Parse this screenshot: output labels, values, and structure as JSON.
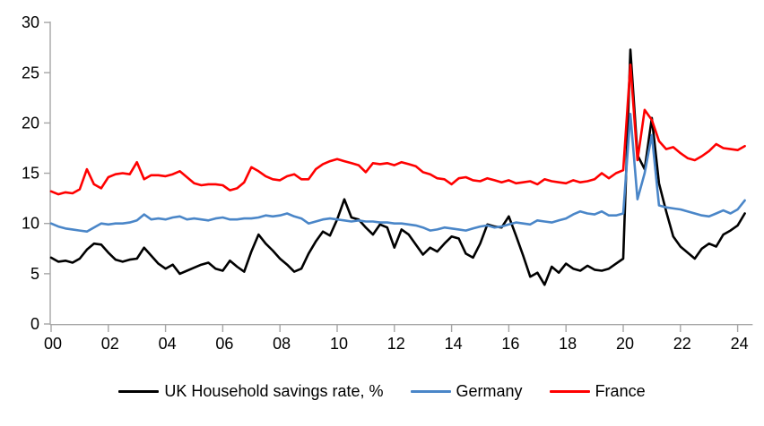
{
  "chart_data": {
    "type": "line",
    "title": "",
    "xlabel": "",
    "ylabel": "",
    "x_start": 2000,
    "x_step": 0.25,
    "xlim": [
      2000,
      2024.4
    ],
    "ylim": [
      0,
      30
    ],
    "grid": false,
    "legend_position": "bottom",
    "axis_color": "#a6a6a6",
    "tick_label_color": "#000000",
    "yticks": [
      0,
      5,
      10,
      15,
      20,
      25,
      30
    ],
    "ytick_labels": [
      "0",
      "5",
      "10",
      "15",
      "20",
      "25",
      "30"
    ],
    "xticks": [
      2000,
      2002,
      2004,
      2006,
      2008,
      2010,
      2012,
      2014,
      2016,
      2018,
      2020,
      2022,
      2024
    ],
    "xtick_labels": [
      "00",
      "02",
      "04",
      "06",
      "08",
      "10",
      "12",
      "14",
      "16",
      "18",
      "20",
      "22",
      "24"
    ],
    "series": [
      {
        "name": "UK Household savings rate, %",
        "color": "#000000",
        "values": [
          6.6,
          6.2,
          6.3,
          6.1,
          6.5,
          7.4,
          8.0,
          7.9,
          7.1,
          6.4,
          6.2,
          6.4,
          6.5,
          7.6,
          6.8,
          6.0,
          5.5,
          5.9,
          5.0,
          5.3,
          5.6,
          5.9,
          6.1,
          5.5,
          5.3,
          6.3,
          5.7,
          5.2,
          7.2,
          8.9,
          8.0,
          7.3,
          6.5,
          5.9,
          5.2,
          5.5,
          7.0,
          8.2,
          9.2,
          8.8,
          10.4,
          12.4,
          10.6,
          10.4,
          9.6,
          8.9,
          9.9,
          9.6,
          7.6,
          9.4,
          8.9,
          7.9,
          6.9,
          7.6,
          7.2,
          8.0,
          8.7,
          8.5,
          7.0,
          6.6,
          8.0,
          9.9,
          9.7,
          9.6,
          10.7,
          8.8,
          6.8,
          4.7,
          5.1,
          3.9,
          5.7,
          5.1,
          6.0,
          5.5,
          5.3,
          5.8,
          5.4,
          5.3,
          5.5,
          6.0,
          6.5,
          27.3,
          16.8,
          15.4,
          20.5,
          14.0,
          11.2,
          8.7,
          7.7,
          7.1,
          6.5,
          7.5,
          8.0,
          7.7,
          8.9,
          9.3,
          9.8,
          11.0
        ]
      },
      {
        "name": "Germany",
        "color": "#4a86c8",
        "values": [
          10.0,
          9.7,
          9.5,
          9.4,
          9.3,
          9.2,
          9.6,
          10.0,
          9.9,
          10.0,
          10.0,
          10.1,
          10.3,
          10.9,
          10.4,
          10.5,
          10.4,
          10.6,
          10.7,
          10.4,
          10.5,
          10.4,
          10.3,
          10.5,
          10.6,
          10.4,
          10.4,
          10.5,
          10.5,
          10.6,
          10.8,
          10.7,
          10.8,
          11.0,
          10.7,
          10.5,
          10.0,
          10.2,
          10.4,
          10.5,
          10.4,
          10.3,
          10.2,
          10.3,
          10.2,
          10.2,
          10.1,
          10.1,
          10.0,
          10.0,
          9.9,
          9.8,
          9.6,
          9.3,
          9.4,
          9.6,
          9.5,
          9.4,
          9.3,
          9.5,
          9.7,
          9.8,
          9.6,
          9.7,
          9.9,
          10.1,
          10.0,
          9.9,
          10.3,
          10.2,
          10.1,
          10.3,
          10.5,
          10.9,
          11.2,
          11.0,
          10.9,
          11.2,
          10.8,
          10.8,
          11.0,
          20.9,
          12.4,
          15.0,
          18.8,
          11.8,
          11.6,
          11.5,
          11.4,
          11.2,
          11.0,
          10.8,
          10.7,
          11.0,
          11.3,
          11.0,
          11.4,
          12.3
        ]
      },
      {
        "name": "France",
        "color": "#ff0000",
        "values": [
          13.2,
          12.9,
          13.1,
          13.0,
          13.4,
          15.4,
          13.9,
          13.5,
          14.6,
          14.9,
          15.0,
          14.9,
          16.1,
          14.4,
          14.8,
          14.8,
          14.7,
          14.9,
          15.2,
          14.6,
          14.0,
          13.8,
          13.9,
          13.9,
          13.8,
          13.3,
          13.5,
          14.1,
          15.6,
          15.2,
          14.7,
          14.4,
          14.3,
          14.7,
          14.9,
          14.4,
          14.4,
          15.4,
          15.9,
          16.2,
          16.4,
          16.2,
          16.0,
          15.8,
          15.1,
          16.0,
          15.9,
          16.0,
          15.8,
          16.1,
          15.9,
          15.7,
          15.1,
          14.9,
          14.5,
          14.4,
          13.9,
          14.5,
          14.6,
          14.3,
          14.2,
          14.5,
          14.3,
          14.1,
          14.3,
          14.0,
          14.1,
          14.2,
          13.9,
          14.4,
          14.2,
          14.1,
          14.0,
          14.3,
          14.1,
          14.2,
          14.4,
          15.0,
          14.5,
          15.0,
          15.3,
          25.8,
          16.3,
          21.3,
          20.3,
          18.2,
          17.4,
          17.6,
          17.0,
          16.5,
          16.3,
          16.7,
          17.2,
          17.9,
          17.5,
          17.4,
          17.3,
          17.7
        ]
      }
    ]
  }
}
